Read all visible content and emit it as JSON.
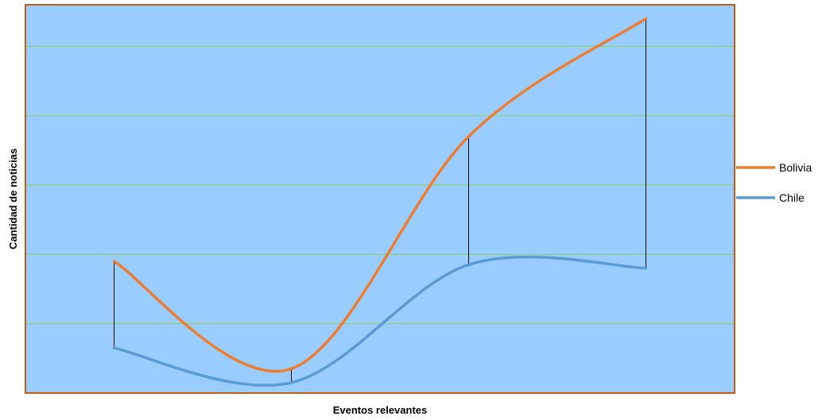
{
  "chart_data": {
    "type": "line",
    "xlabel": "Eventos relevantes",
    "ylabel": "Cantidad de noticias",
    "x": [
      1,
      2,
      3,
      4
    ],
    "xlim": [
      0.5,
      4.5
    ],
    "ylim": [
      0,
      5.6
    ],
    "grid": true,
    "legend": "right",
    "smooth": true,
    "series": [
      {
        "name": "Bolivia",
        "color": "#ED7D31",
        "values": [
          1.9,
          0.35,
          3.7,
          5.4
        ]
      },
      {
        "name": "Chile",
        "color": "#5B9BD5",
        "values": [
          0.65,
          0.15,
          1.85,
          1.8
        ]
      }
    ],
    "drop_lines": true,
    "colors": {
      "plot_background": "#99CCFF",
      "plot_border": "#C55A11",
      "gridline": "#92D050",
      "drop_line": "#000000"
    }
  }
}
